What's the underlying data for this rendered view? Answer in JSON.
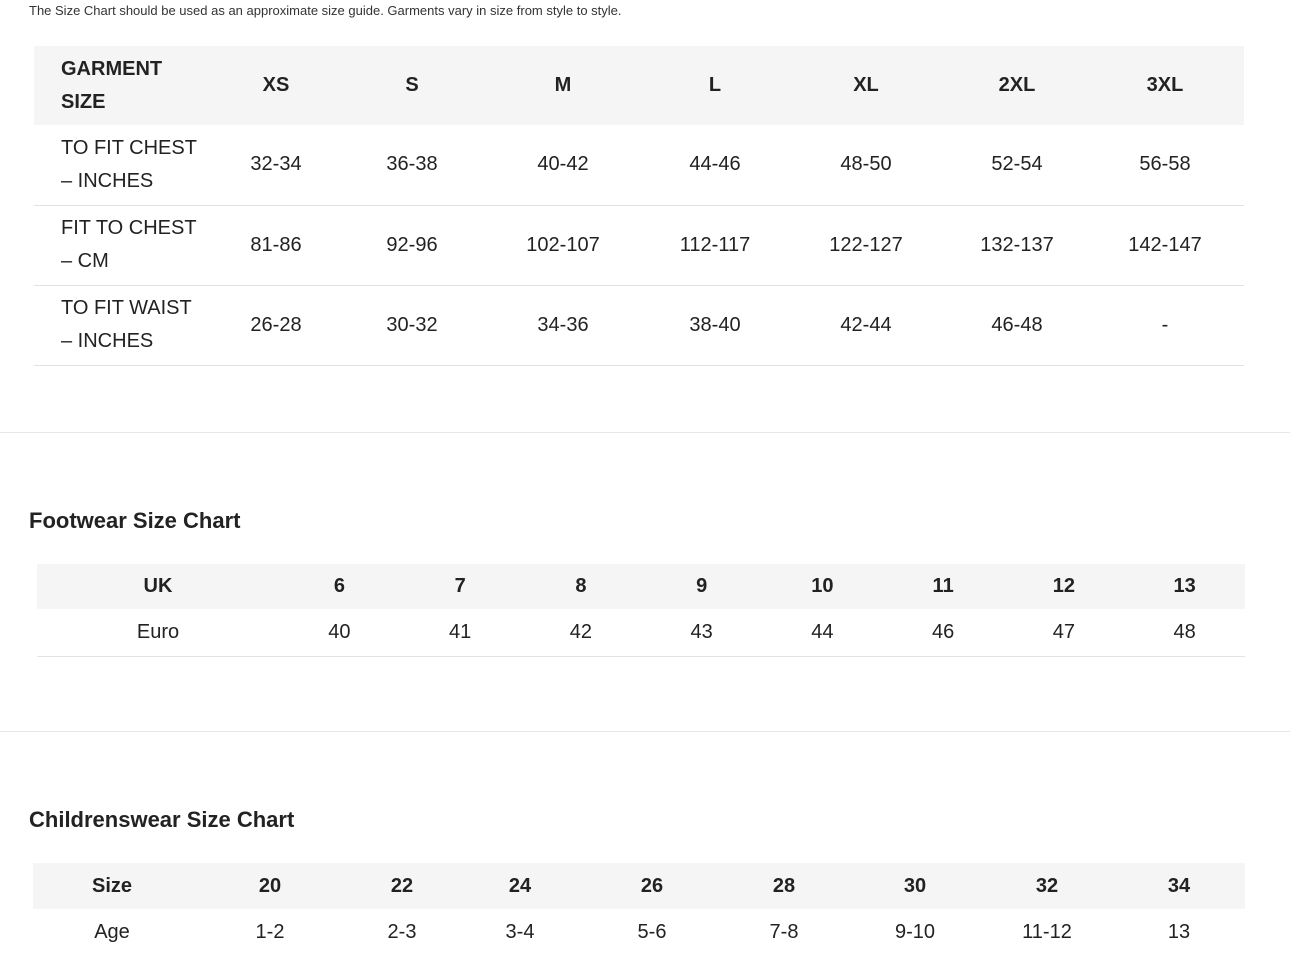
{
  "intro_note": "The Size Chart should be used as an approximate size guide. Garments vary in size from style to style.",
  "garment": {
    "header": {
      "label_line1": "GARMENT",
      "label_line2": "SIZE",
      "sizes": [
        "XS",
        "S",
        "M",
        "L",
        "XL",
        "2XL",
        "3XL"
      ]
    },
    "rows": [
      {
        "label_line1": "TO FIT CHEST",
        "label_line2": "– INCHES",
        "values": [
          "32-34",
          "36-38",
          "40-42",
          "44-46",
          "48-50",
          "52-54",
          "56-58"
        ]
      },
      {
        "label_line1": "FIT TO CHEST",
        "label_line2": "– CM",
        "values": [
          "81-86",
          "92-96",
          "102-107",
          "112-117",
          "122-127",
          "132-137",
          "142-147"
        ]
      },
      {
        "label_line1": "TO FIT WAIST",
        "label_line2": "– INCHES",
        "values": [
          "26-28",
          "30-32",
          "34-36",
          "38-40",
          "42-44",
          "46-48",
          "-"
        ]
      }
    ]
  },
  "footwear": {
    "title": "Footwear Size Chart",
    "header": {
      "label": "UK",
      "values": [
        "6",
        "7",
        "8",
        "9",
        "10",
        "11",
        "12",
        "13"
      ]
    },
    "row": {
      "label": "Euro",
      "values": [
        "40",
        "41",
        "42",
        "43",
        "44",
        "46",
        "47",
        "48"
      ]
    }
  },
  "children": {
    "title": "Childrenswear Size Chart",
    "header": {
      "label": "Size",
      "values": [
        "20",
        "22",
        "24",
        "26",
        "28",
        "30",
        "32",
        "34"
      ]
    },
    "row": {
      "label": "Age",
      "values": [
        "1-2",
        "2-3",
        "3-4",
        "5-6",
        "7-8",
        "9-10",
        "11-12",
        "13"
      ]
    }
  }
}
